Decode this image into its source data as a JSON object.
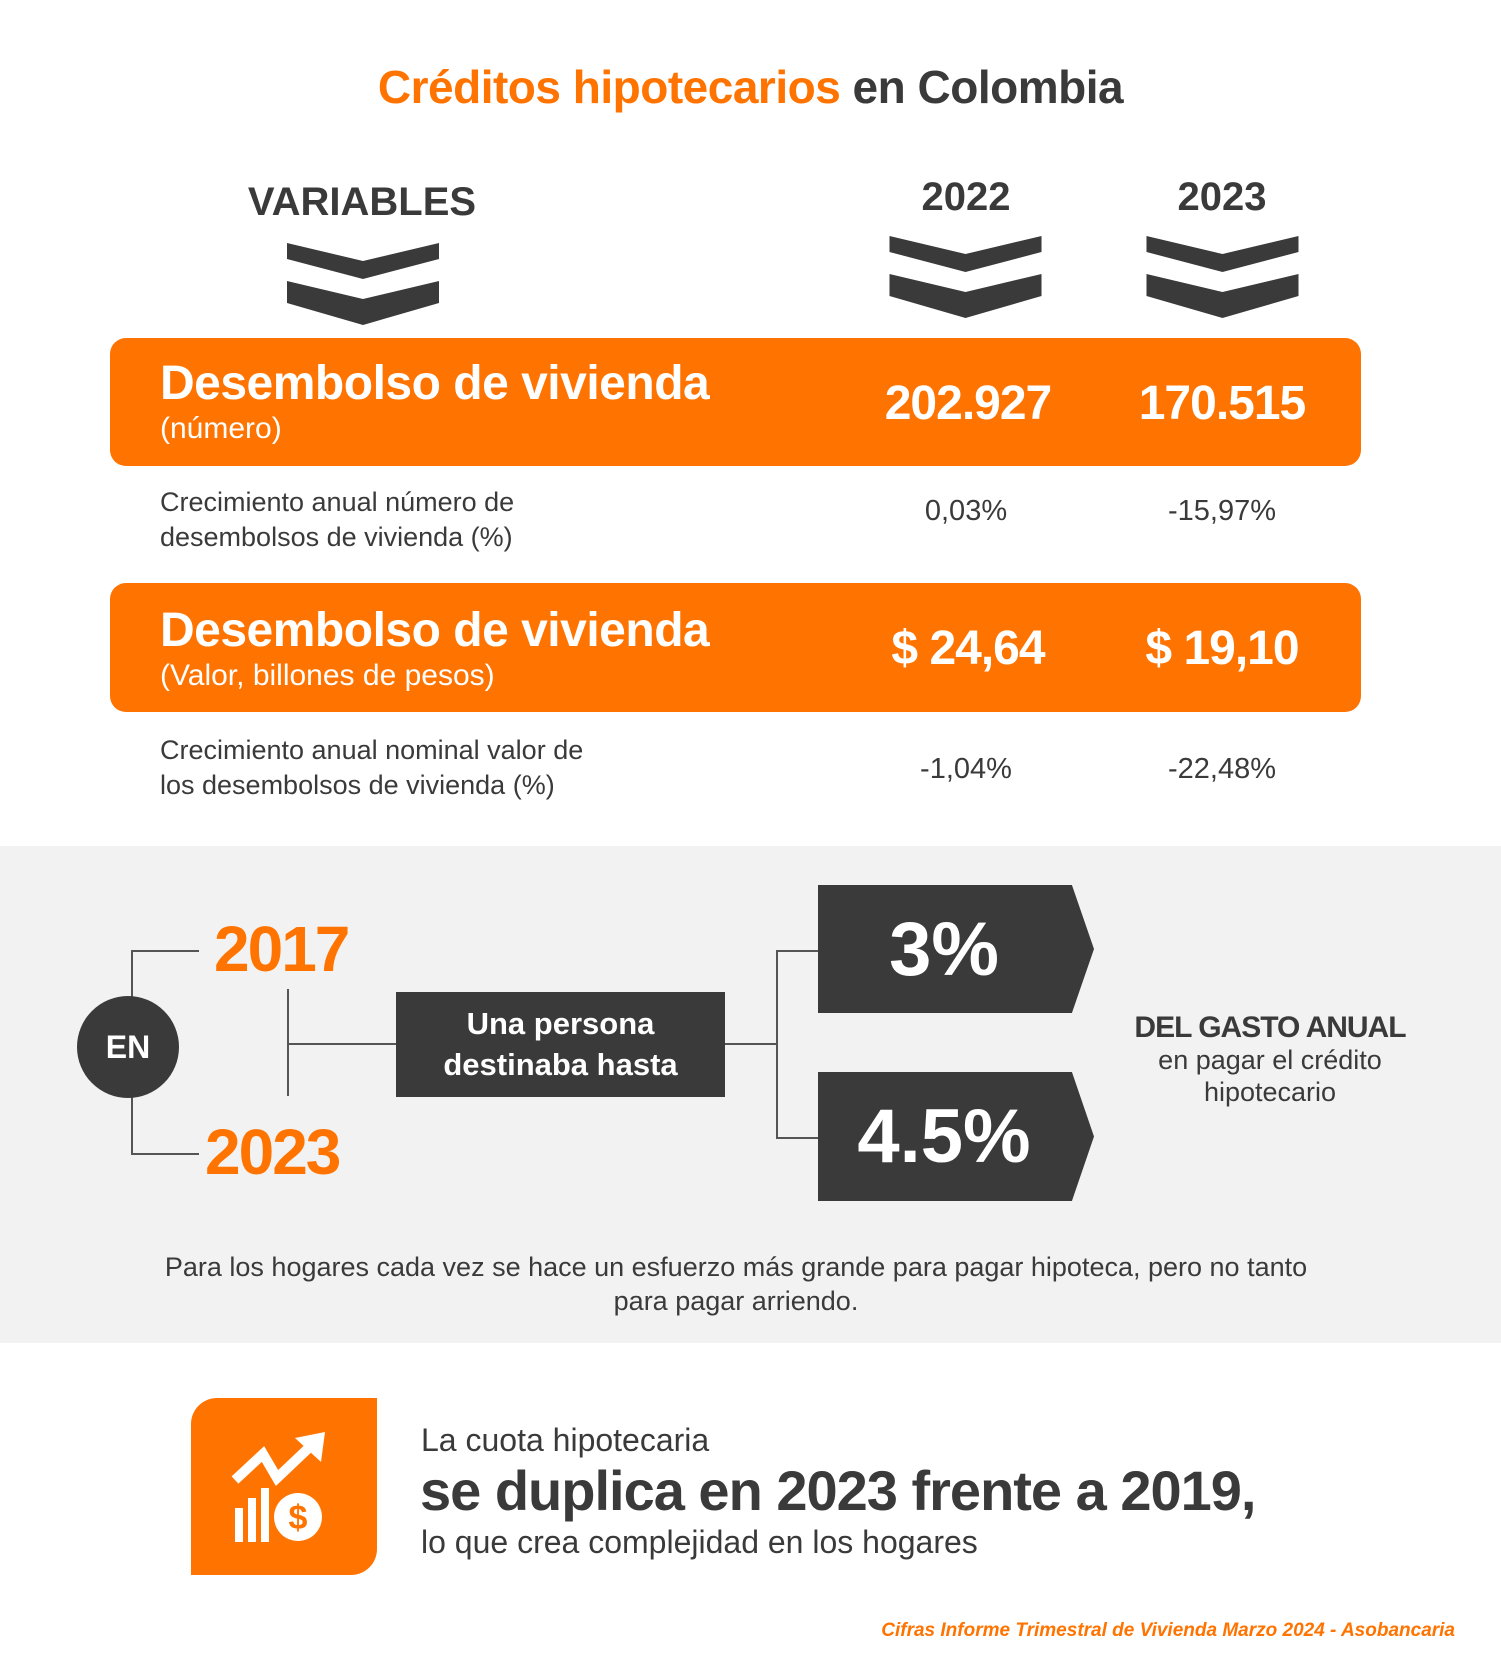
{
  "title": {
    "highlight": "Créditos hipotecarios",
    "rest": " en Colombia"
  },
  "columns": {
    "variables": "VARIABLES",
    "y1": "2022",
    "y2": "2023"
  },
  "rows": [
    {
      "title": "Desembolso de vivienda",
      "subtitle": "(número)",
      "v1": "202.927",
      "v2": "170.515",
      "growth_label_1": "Crecimiento anual número de",
      "growth_label_2": "desembolsos de vivienda (%)",
      "g1": "0,03%",
      "g2": "-15,97%"
    },
    {
      "title": "Desembolso de vivienda",
      "subtitle": "(Valor, billones de pesos)",
      "v1": "$ 24,64",
      "v2": "$ 19,10",
      "growth_label_1": "Crecimiento anual nominal valor de",
      "growth_label_2": "los desembolsos de vivienda (%)",
      "g1": "-1,04%",
      "g2": "-22,48%"
    }
  ],
  "diagram": {
    "en": "EN",
    "year1": "2017",
    "year2": "2023",
    "box_1": "Una persona",
    "box_2": "destinaba hasta",
    "pct1": "3%",
    "pct2": "4.5%",
    "side_bold": "DEL GASTO ANUAL",
    "side_1": "en pagar el crédito",
    "side_2": "hipotecario",
    "note": "Para los hogares cada vez se hace un esfuerzo más grande para pagar hipoteca, pero no tanto para pagar arriendo."
  },
  "callout": {
    "icon": "growth-chart-dollar-icon",
    "line1": "La cuota hipotecaria",
    "line2": "se duplica en 2023 frente a 2019,",
    "line3": "lo que crea complejidad en los hogares"
  },
  "source": "Cifras Informe Trimestral de Vivienda Marzo 2024 - Asobancaria",
  "colors": {
    "accent": "#ff7300",
    "dark": "#3a3a3a",
    "band": "#f2f2f2"
  }
}
